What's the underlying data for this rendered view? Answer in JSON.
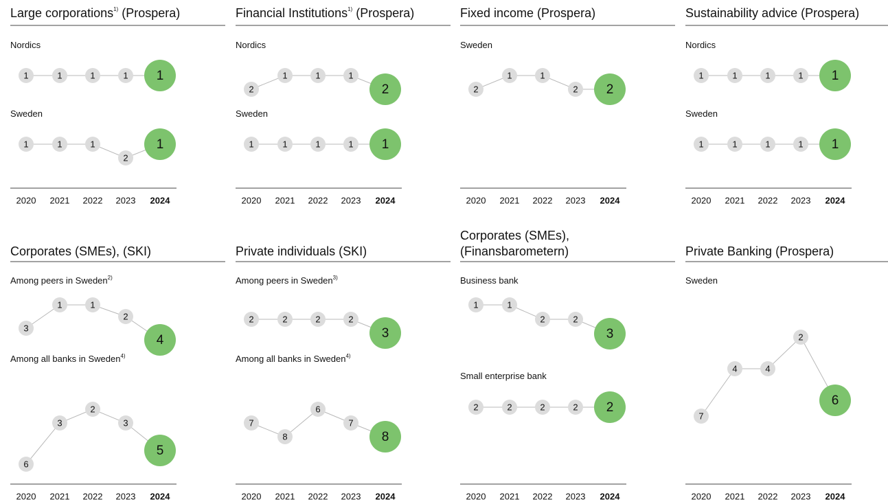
{
  "chart_data": [
    {
      "type": "rank",
      "title": "Large corporations",
      "footnote": "1)",
      "source": "(Prospera)",
      "x": [
        2020,
        2021,
        2022,
        2023,
        2024
      ],
      "series": [
        {
          "name": "Nordics",
          "values": [
            1,
            1,
            1,
            1,
            1
          ]
        },
        {
          "name": "Sweden",
          "values": [
            1,
            1,
            1,
            2,
            1
          ]
        }
      ]
    },
    {
      "type": "rank",
      "title": "Financial Institutions",
      "footnote": "1)",
      "source": "(Prospera)",
      "x": [
        2020,
        2021,
        2022,
        2023,
        2024
      ],
      "series": [
        {
          "name": "Nordics",
          "values": [
            2,
            1,
            1,
            1,
            2
          ]
        },
        {
          "name": "Sweden",
          "values": [
            1,
            1,
            1,
            1,
            1
          ]
        }
      ]
    },
    {
      "type": "rank",
      "title": "Fixed income",
      "source": "(Prospera)",
      "x": [
        2020,
        2021,
        2022,
        2023,
        2024
      ],
      "series": [
        {
          "name": "Sweden",
          "values": [
            2,
            1,
            1,
            2,
            2
          ]
        }
      ]
    },
    {
      "type": "rank",
      "title": "Sustainability advice",
      "source": "(Prospera)",
      "x": [
        2020,
        2021,
        2022,
        2023,
        2024
      ],
      "series": [
        {
          "name": "Nordics",
          "values": [
            1,
            1,
            1,
            1,
            1
          ]
        },
        {
          "name": "Sweden",
          "values": [
            1,
            1,
            1,
            1,
            1
          ]
        }
      ]
    },
    {
      "type": "rank",
      "title": "Corporates (SMEs),",
      "source": "(SKI)",
      "x": [
        2020,
        2021,
        2022,
        2023,
        2024
      ],
      "series": [
        {
          "name": "Among peers in Sweden",
          "footnote": "2)",
          "values": [
            3,
            1,
            1,
            2,
            4
          ]
        },
        {
          "name": "Among all banks in Sweden",
          "footnote": "4)",
          "values": [
            6,
            3,
            2,
            3,
            5
          ]
        }
      ]
    },
    {
      "type": "rank",
      "title": "Private individuals",
      "source": "(SKI)",
      "x": [
        2020,
        2021,
        2022,
        2023,
        2024
      ],
      "series": [
        {
          "name": "Among peers in Sweden",
          "footnote": "3)",
          "values": [
            2,
            2,
            2,
            2,
            3
          ]
        },
        {
          "name": "Among all banks in Sweden",
          "footnote": "4)",
          "values": [
            7,
            8,
            6,
            7,
            8
          ]
        }
      ]
    },
    {
      "type": "rank",
      "title": "Corporates (SMEs),",
      "source": "(Finansbarometern)",
      "source_newline": true,
      "x": [
        2020,
        2021,
        2022,
        2023,
        2024
      ],
      "series": [
        {
          "name": "Business bank",
          "values": [
            1,
            1,
            2,
            2,
            3
          ]
        },
        {
          "name": "Small enterprise bank",
          "values": [
            2,
            2,
            2,
            2,
            2
          ]
        }
      ]
    },
    {
      "type": "rank",
      "title": "Private Banking",
      "source": "(Prospera)",
      "x": [
        2020,
        2021,
        2022,
        2023,
        2024
      ],
      "series": [
        {
          "name": "Sweden",
          "values": [
            7,
            4,
            4,
            2,
            6
          ]
        }
      ]
    }
  ],
  "point_color": "#dcdcdc",
  "highlight_color": "#7dc36d",
  "line_color": "#b8b8b8"
}
